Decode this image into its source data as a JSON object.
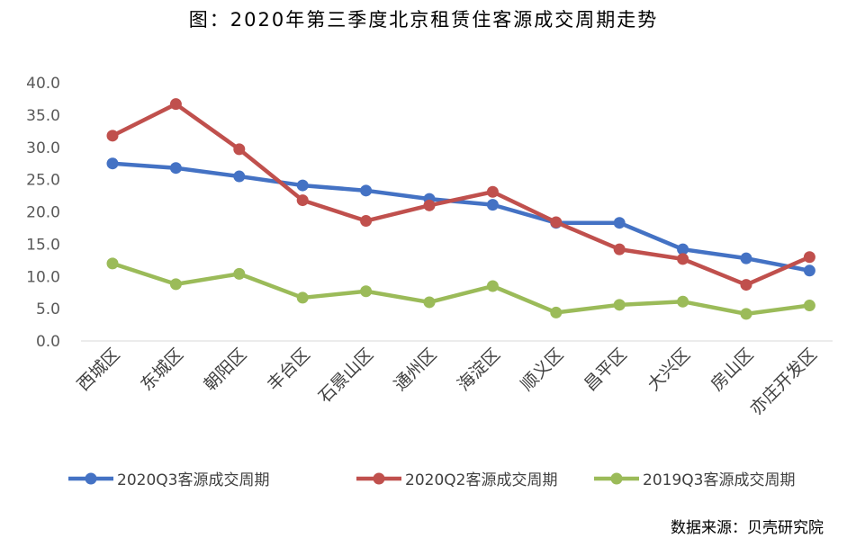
{
  "title": "图：2020年第三季度北京租赁住客源成交周期走势",
  "source": "数据来源：贝壳研究院",
  "colors": {
    "series1": "#4472C4",
    "series2": "#C0504D",
    "series3": "#9BBB59"
  },
  "chart_data": {
    "type": "line",
    "categories": [
      "西城区",
      "东城区",
      "朝阳区",
      "丰台区",
      "石景山区",
      "通州区",
      "海淀区",
      "顺义区",
      "昌平区",
      "大兴区",
      "房山区",
      "亦庄开发区"
    ],
    "series": [
      {
        "name": "2020Q3客源成交周期",
        "values": [
          27.5,
          26.8,
          25.5,
          24.1,
          23.3,
          22.0,
          21.1,
          18.3,
          18.3,
          14.2,
          12.8,
          10.9
        ]
      },
      {
        "name": "2020Q2客源成交周期",
        "values": [
          31.8,
          36.7,
          29.7,
          21.8,
          18.6,
          21.0,
          23.1,
          18.4,
          14.2,
          12.7,
          8.7,
          13.0
        ]
      },
      {
        "name": "2019Q3客源成交周期",
        "values": [
          12.0,
          8.8,
          10.4,
          6.7,
          7.7,
          6.0,
          8.5,
          4.4,
          5.6,
          6.1,
          4.2,
          5.5
        ]
      }
    ],
    "y_ticks": [
      "0.0",
      "5.0",
      "10.0",
      "15.0",
      "20.0",
      "25.0",
      "30.0",
      "35.0",
      "40.0"
    ],
    "ylim": [
      0,
      40
    ],
    "legend_position": "bottom",
    "grid": false
  }
}
